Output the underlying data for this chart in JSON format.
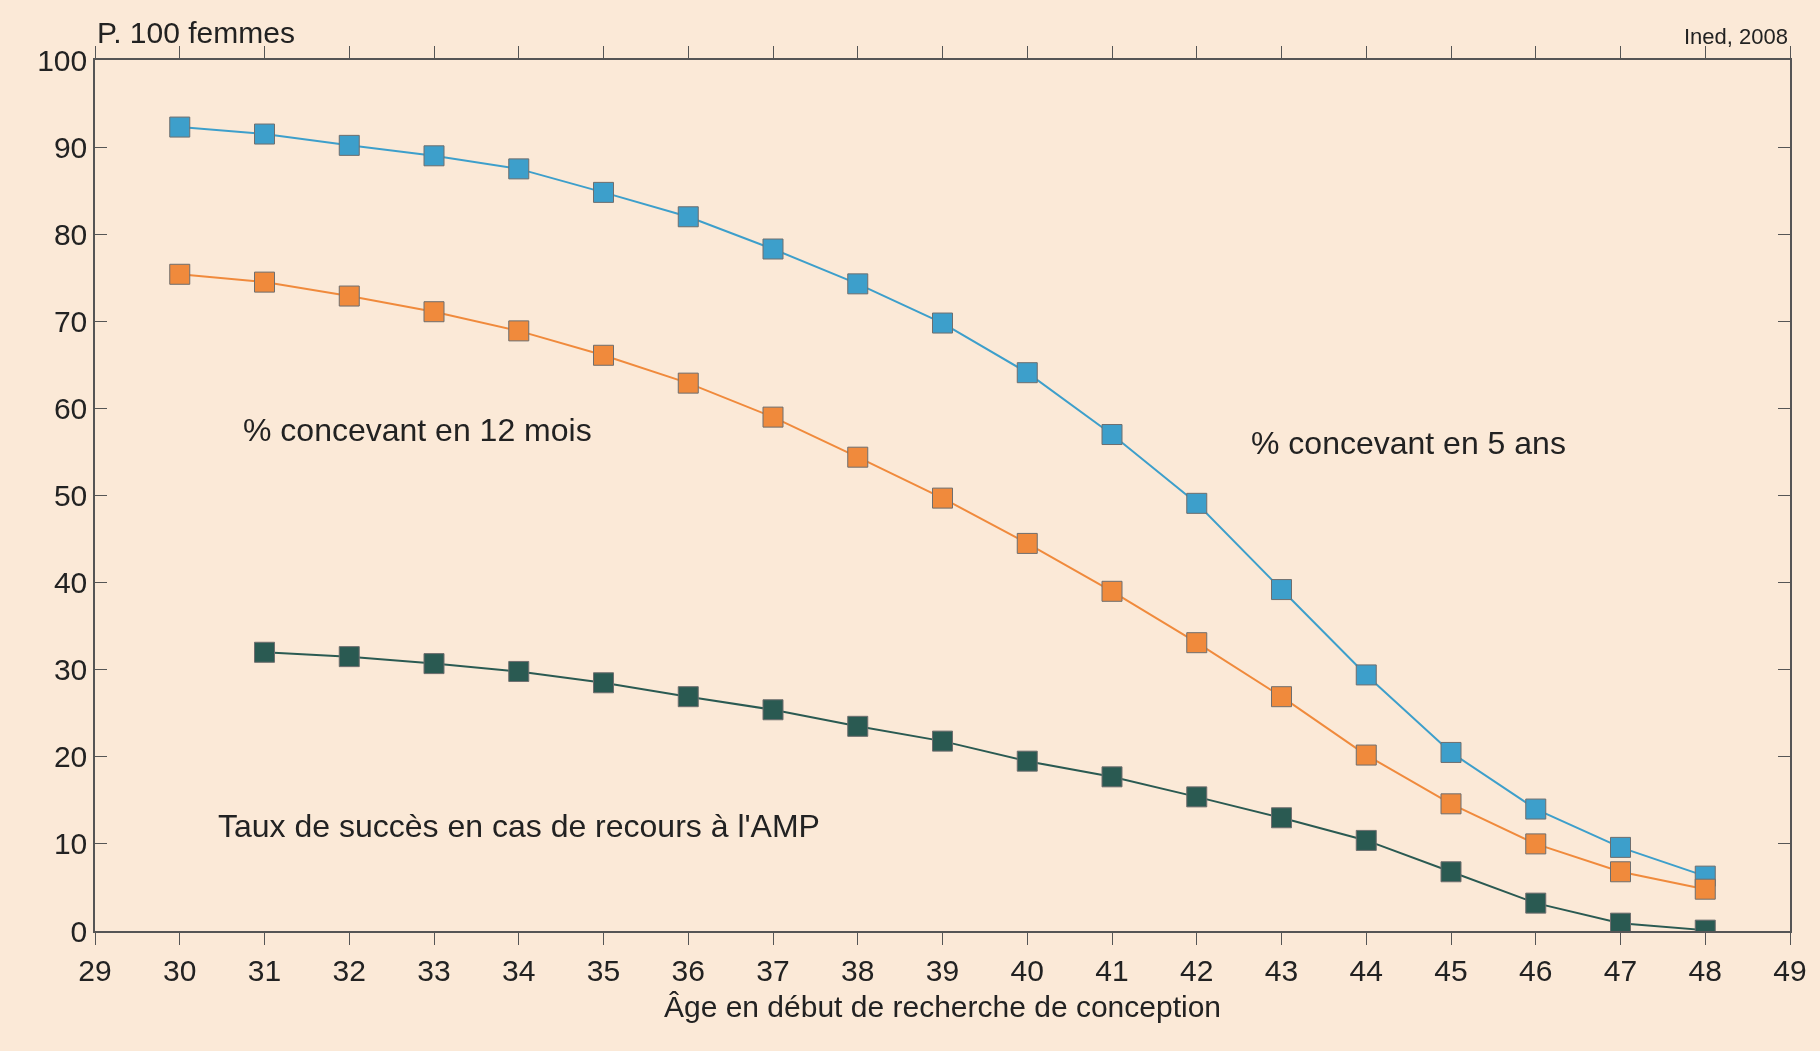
{
  "chart_data": {
    "type": "line",
    "ylabel": "P. 100 femmes",
    "xlabel": "Âge en début de recherche de conception",
    "annotations": [
      "Ined, 2008"
    ],
    "x": [
      30,
      31,
      32,
      33,
      34,
      35,
      36,
      37,
      38,
      39,
      40,
      41,
      42,
      43,
      44,
      45,
      46,
      47,
      48
    ],
    "series": [
      {
        "name": "% concevant en 5 ans",
        "color": "#3d9fcb",
        "values": [
          92.3,
          91.5,
          90.2,
          89,
          87.5,
          84.8,
          82,
          78.3,
          74.3,
          69.8,
          64.1,
          57,
          49.1,
          39.2,
          29.4,
          20.5,
          14,
          9.6,
          6.3
        ]
      },
      {
        "name": "% concevant en 12 mois",
        "color": "#f08a3c",
        "values": [
          75.4,
          74.5,
          72.9,
          71.1,
          68.9,
          66.1,
          62.9,
          59,
          54.4,
          49.7,
          44.5,
          39,
          33.1,
          26.9,
          20.2,
          14.6,
          10,
          6.8,
          4.8
        ]
      },
      {
        "name": "Taux de succès en cas de recours à l'AMP",
        "color": "#2a5a52",
        "values": [
          null,
          32,
          31.5,
          30.7,
          29.8,
          28.5,
          26.9,
          25.4,
          23.5,
          21.8,
          19.5,
          17.7,
          15.4,
          13,
          10.4,
          6.8,
          3.2,
          0.9,
          0.1
        ]
      }
    ],
    "xlim": [
      29,
      49
    ],
    "xticks": [
      29,
      30,
      31,
      32,
      33,
      34,
      35,
      36,
      37,
      38,
      39,
      40,
      41,
      42,
      43,
      44,
      45,
      46,
      47,
      48,
      49
    ],
    "ylim": [
      0,
      100
    ],
    "yticks": [
      0,
      10,
      20,
      30,
      40,
      50,
      60,
      70,
      80,
      90,
      100
    ],
    "grid": false,
    "legend": false,
    "marker": "square",
    "line_style": "solid"
  }
}
